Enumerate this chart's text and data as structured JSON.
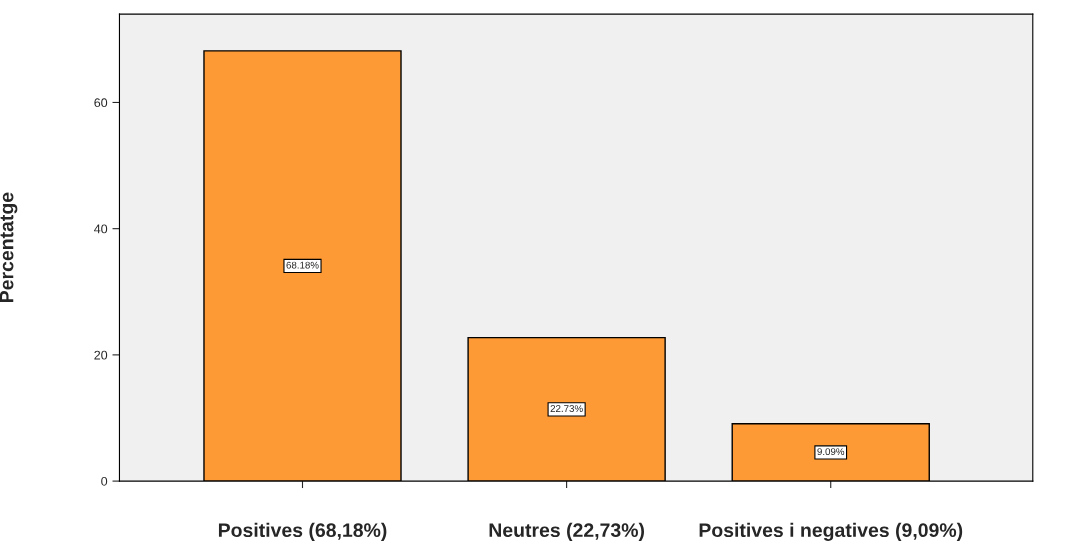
{
  "chart_data": {
    "type": "bar",
    "ylabel": "Percentatge",
    "categories": [
      "Positives (68,18%)",
      "Neutres (22,73%)",
      "Positives i negatives (9,09%)"
    ],
    "values": [
      68.18,
      22.73,
      9.09
    ],
    "value_labels": [
      "68.18%",
      "22.73%",
      "9.09%"
    ],
    "color": "#fd9a35",
    "ylim": [
      0,
      74
    ],
    "yticks": [
      0,
      20,
      40,
      60
    ],
    "grid": false,
    "legend": false
  }
}
